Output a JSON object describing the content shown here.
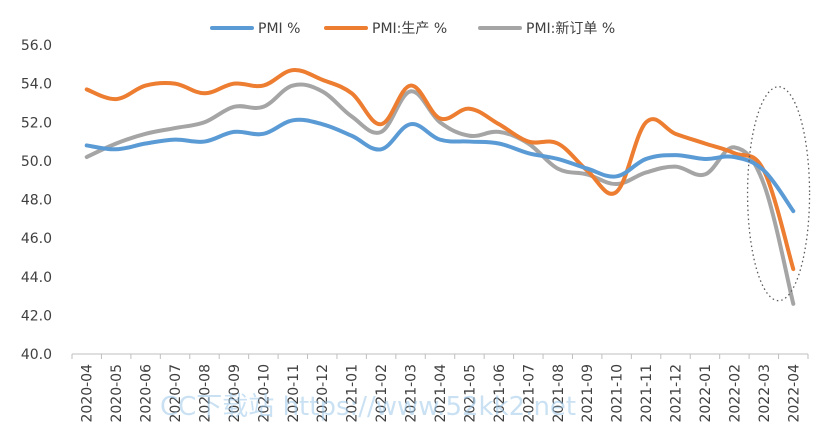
{
  "chart_data": {
    "type": "line",
    "title": "",
    "xlabel": "",
    "ylabel": "",
    "ylim": [
      40.0,
      56.0
    ],
    "yticks": [
      "40.0",
      "42.0",
      "44.0",
      "46.0",
      "48.0",
      "50.0",
      "52.0",
      "54.0",
      "56.0"
    ],
    "grid": false,
    "legend_position": "top-center",
    "categories": [
      "2020-04",
      "2020-05",
      "2020-06",
      "2020-07",
      "2020-08",
      "2020-09",
      "2020-10",
      "2020-11",
      "2020-12",
      "2021-01",
      "2021-02",
      "2021-03",
      "2021-04",
      "2021-05",
      "2021-06",
      "2021-07",
      "2021-08",
      "2021-09",
      "2021-10",
      "2021-11",
      "2021-12",
      "2022-01",
      "2022-02",
      "2022-03",
      "2022-04"
    ],
    "series": [
      {
        "name": "PMI %",
        "color": "#5b9bd5",
        "values": [
          50.8,
          50.6,
          50.9,
          51.1,
          51.0,
          51.5,
          51.4,
          52.1,
          51.9,
          51.3,
          50.6,
          51.9,
          51.1,
          51.0,
          50.9,
          50.4,
          50.1,
          49.6,
          49.2,
          50.1,
          50.3,
          50.1,
          50.2,
          49.5,
          47.4
        ]
      },
      {
        "name": "PMI:生产 %",
        "color": "#ed7d31",
        "values": [
          53.7,
          53.2,
          53.9,
          54.0,
          53.5,
          54.0,
          53.9,
          54.7,
          54.2,
          53.5,
          51.9,
          53.9,
          52.2,
          52.7,
          51.9,
          51.0,
          50.9,
          49.5,
          48.4,
          52.0,
          51.4,
          50.9,
          50.4,
          49.5,
          44.4
        ]
      },
      {
        "name": "PMI:新订单 %",
        "color": "#a5a5a5",
        "values": [
          50.2,
          50.9,
          51.4,
          51.7,
          52.0,
          52.8,
          52.8,
          53.9,
          53.6,
          52.3,
          51.5,
          53.6,
          52.0,
          51.3,
          51.5,
          50.9,
          49.6,
          49.3,
          48.8,
          49.4,
          49.7,
          49.3,
          50.7,
          48.8,
          42.6
        ]
      }
    ],
    "annotation": "dotted ellipse around 2022-03 to 2022-04"
  },
  "watermark": {
    "text": "CC下载站 https://www.52kk2.net"
  }
}
